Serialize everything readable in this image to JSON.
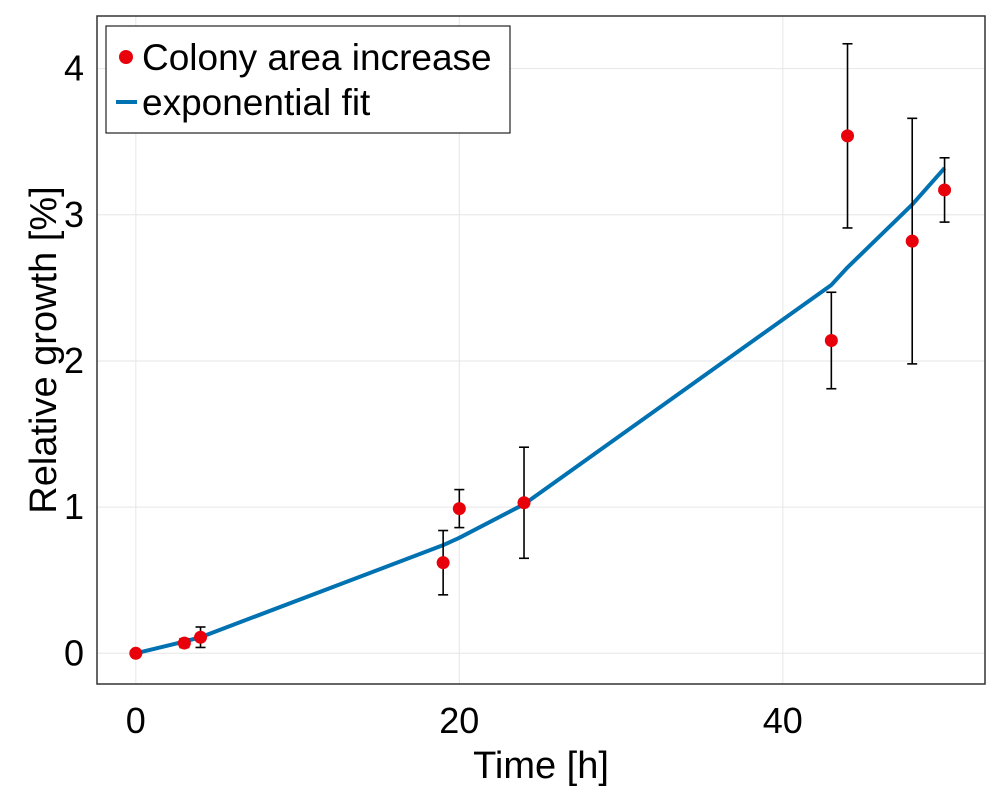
{
  "chart_data": {
    "type": "scatter",
    "xlabel": "Time [h]",
    "ylabel": "Relative growth [%]",
    "xlim": [
      -2.4,
      52.5
    ],
    "ylim": [
      -0.21,
      4.36
    ],
    "x_ticks": [
      0,
      20,
      40
    ],
    "y_ticks": [
      0,
      1,
      2,
      3,
      4
    ],
    "grid": true,
    "legend_position": "top-left",
    "colors": {
      "points": "#e8000b",
      "fit": "#0072b2",
      "errorbars": "#000000"
    },
    "series": [
      {
        "name": "Colony area increase",
        "type": "scatter",
        "x": [
          0,
          3,
          4,
          19,
          20,
          24,
          43,
          44,
          48,
          50
        ],
        "y": [
          0.0,
          0.07,
          0.11,
          0.62,
          0.99,
          1.03,
          2.14,
          3.54,
          2.82,
          3.17
        ],
        "err": [
          0.0,
          0.03,
          0.07,
          0.22,
          0.13,
          0.38,
          0.33,
          0.63,
          0.84,
          0.22
        ]
      },
      {
        "name": "exponential fit",
        "type": "line",
        "x": [
          0,
          3,
          4,
          19,
          20,
          24,
          43,
          44,
          48,
          50
        ],
        "y": [
          0.0,
          0.08,
          0.11,
          0.74,
          0.79,
          1.02,
          2.52,
          2.64,
          3.07,
          3.32
        ]
      }
    ]
  }
}
